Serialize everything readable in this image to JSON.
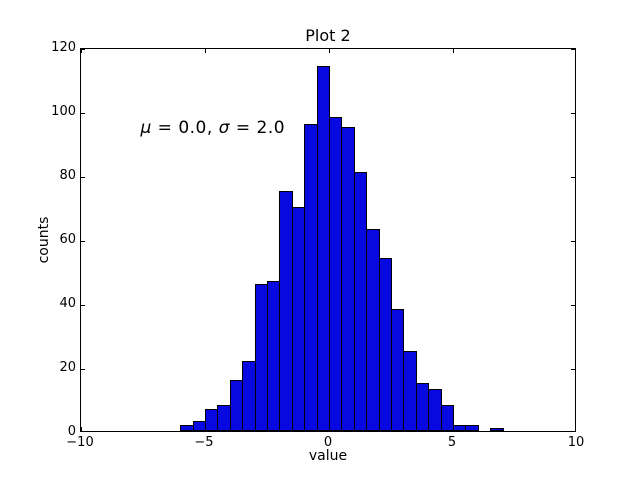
{
  "figure": {
    "title": "Plot 2",
    "xlabel": "value",
    "ylabel": "counts",
    "annotation": {
      "mu": "μ",
      "eq1": " = 0.0, ",
      "sigma": "σ",
      "eq2": " = 2.0"
    },
    "colors": {
      "bar_fill": "#0808e0",
      "bar_edge": "#000000",
      "axis": "#000000",
      "text": "#000000",
      "background": "#ffffff"
    }
  },
  "chart_data": {
    "type": "bar",
    "subtype": "histogram",
    "title": "Plot 2",
    "xlabel": "value",
    "ylabel": "counts",
    "xlim": [
      -10,
      10
    ],
    "ylim": [
      0,
      120
    ],
    "xticks": [
      -10,
      -5,
      0,
      5,
      10
    ],
    "xtick_labels": [
      "−10",
      "−5",
      "0",
      "5",
      "10"
    ],
    "yticks": [
      0,
      20,
      40,
      60,
      80,
      100,
      120
    ],
    "ytick_labels": [
      "0",
      "20",
      "40",
      "60",
      "80",
      "100",
      "120"
    ],
    "grid": false,
    "legend": null,
    "bins": {
      "start": -6.0,
      "width": 0.5,
      "counts": [
        2,
        3,
        7,
        8,
        16,
        22,
        46,
        47,
        75,
        70,
        96,
        114,
        98,
        95,
        81,
        63,
        54,
        38,
        25,
        15,
        13,
        8,
        2,
        2,
        0,
        1
      ]
    },
    "annotation": {
      "text": "μ = 0.0, σ = 2.0",
      "x": -9,
      "y": 100
    }
  }
}
